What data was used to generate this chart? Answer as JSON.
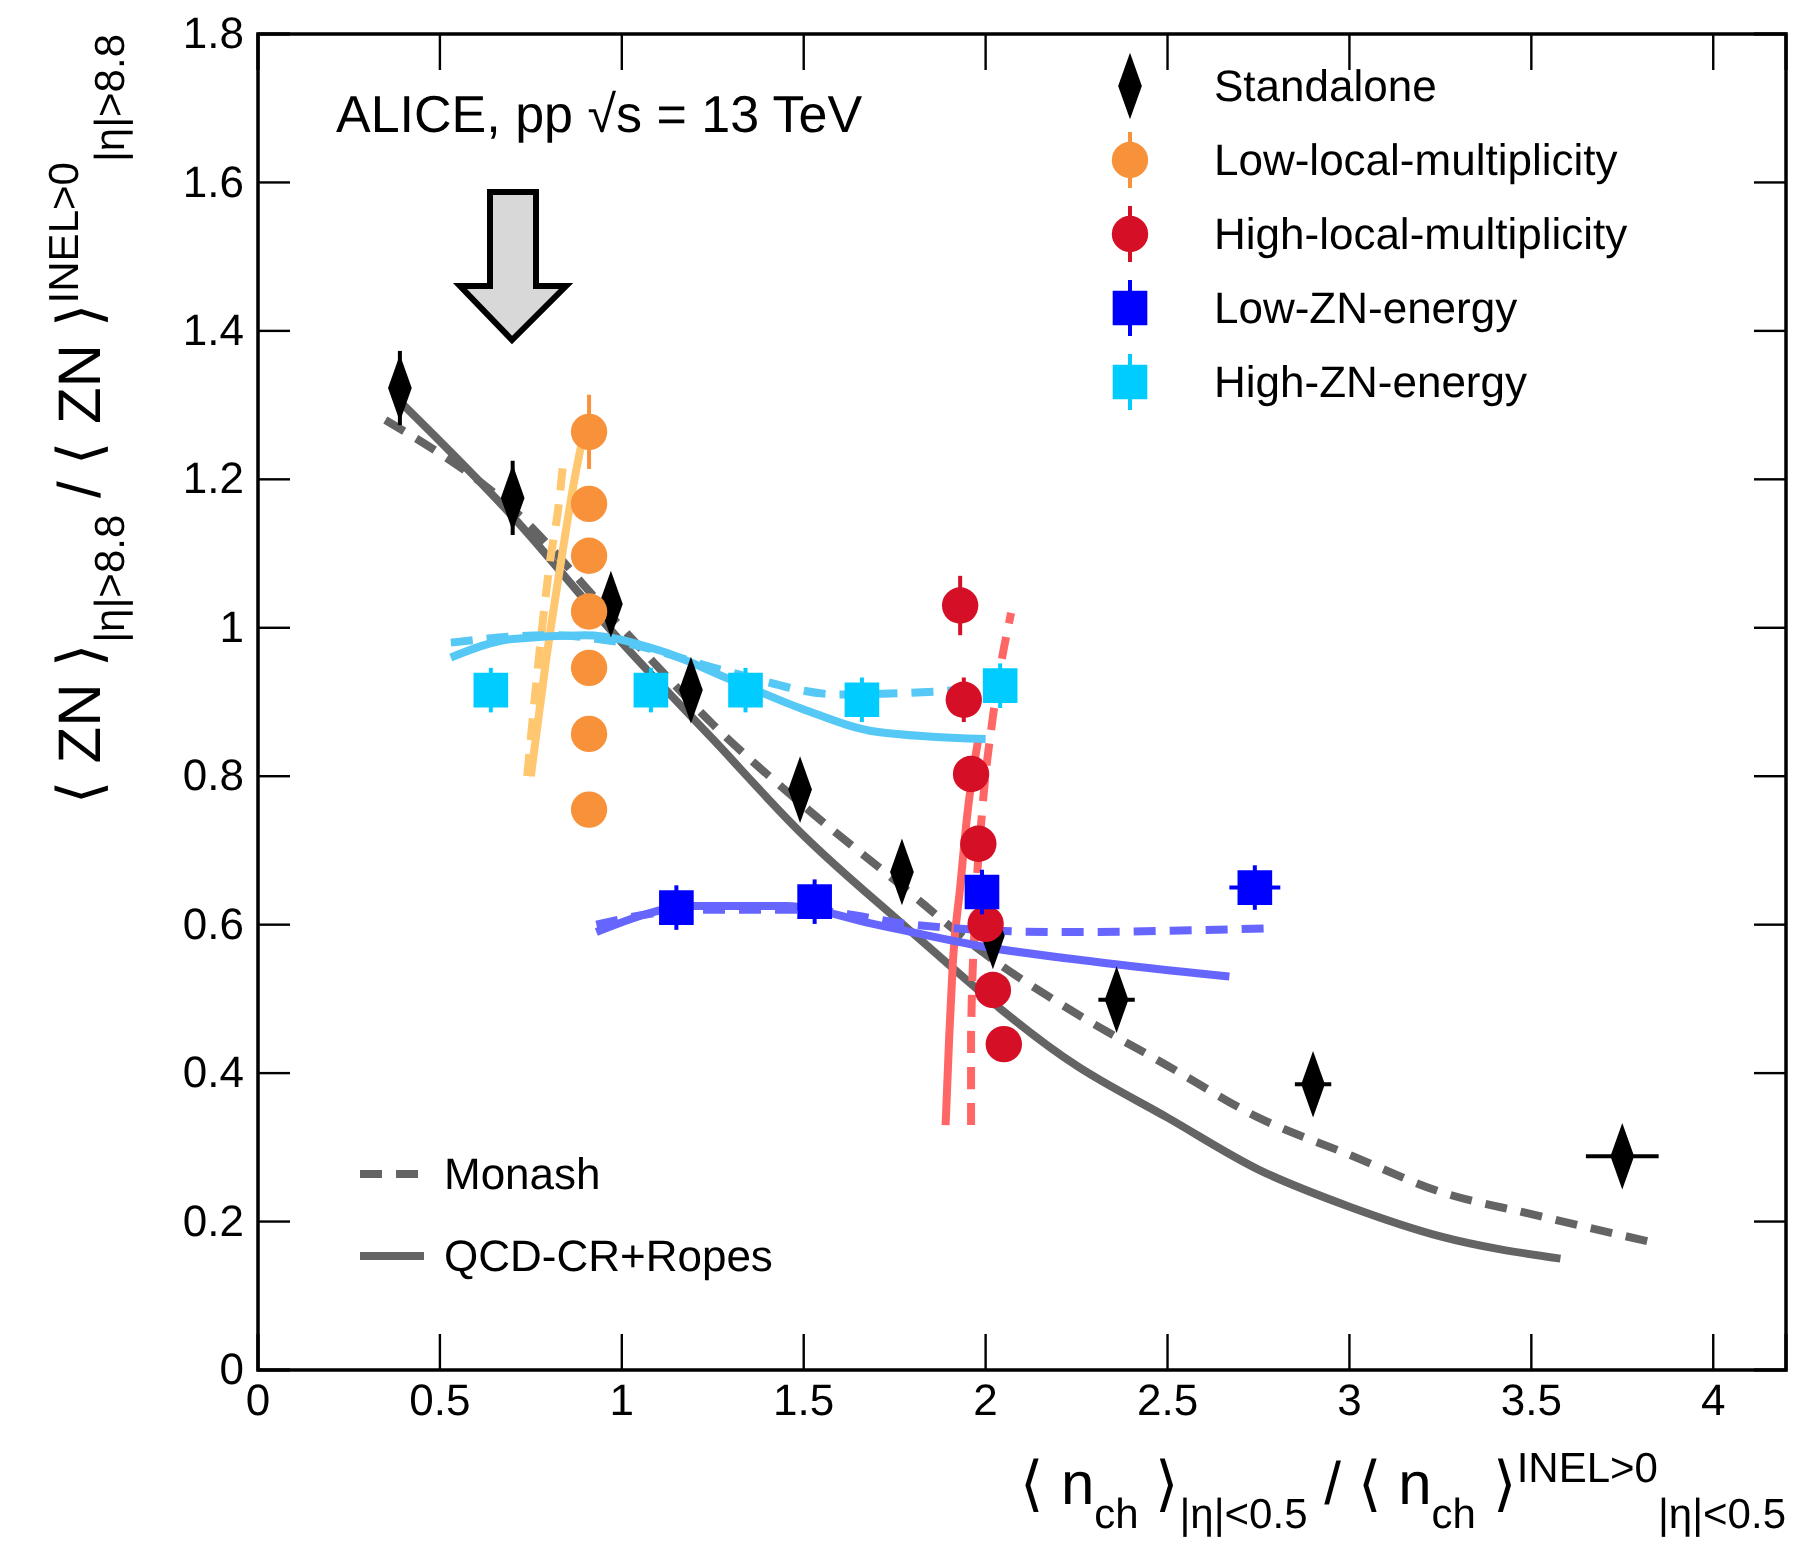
{
  "chart_data": {
    "type": "scatter",
    "xlabel": "⟨ n$_{ch}$ ⟩$_{|η|<0.5}$ / ⟨ n$_{ch}$ ⟩$^{INEL>0}$$_{|η|<0.5}$",
    "ylabel": "⟨ ZN ⟩$_{|η|>8.8}$ / ⟨ ZN ⟩$^{INEL>0}$$_{|η|>8.8}$",
    "annotations": [
      "ALICE, pp √s = 13 TeV"
    ],
    "xlim": [
      0,
      4.2
    ],
    "xticks": [
      0,
      0.5,
      1,
      1.5,
      2,
      2.5,
      3,
      3.5,
      4
    ],
    "ylim": [
      0,
      1.8
    ],
    "yticks": [
      0,
      0.2,
      0.4,
      0.6,
      0.8,
      1,
      1.2,
      1.4,
      1.6,
      1.8
    ],
    "grid": false,
    "legend": "top right",
    "series": [
      {
        "type": "line",
        "name": "Monash",
        "color": "#646464",
        "line_style": "dashed",
        "x": [
          0.35,
          0.7,
          1.0,
          1.25,
          1.5,
          1.75,
          2.0,
          2.25,
          2.5,
          2.75,
          3.0,
          3.25,
          3.5,
          3.85
        ],
        "values": [
          1.28,
          1.16,
          1.0,
          0.87,
          0.76,
          0.66,
          0.56,
          0.48,
          0.41,
          0.34,
          0.29,
          0.24,
          0.21,
          0.17
        ]
      },
      {
        "type": "line",
        "name": "QCD-CR+Ropes",
        "color": "#646464",
        "line_style": "solid",
        "x": [
          0.4,
          0.7,
          1.0,
          1.25,
          1.5,
          1.75,
          2.0,
          2.25,
          2.5,
          2.75,
          3.0,
          3.25,
          3.58
        ],
        "values": [
          1.3,
          1.15,
          0.98,
          0.85,
          0.72,
          0.61,
          null,
          0.41,
          0.34,
          0.27,
          0.22,
          0.18,
          0.15
        ]
      },
      {
        "type": "line",
        "color": "#ffc870",
        "line_style": "dashed",
        "x": [
          0.74,
          0.77,
          0.8,
          0.83,
          0.84
        ],
        "values": [
          0.8,
          0.95,
          1.08,
          1.18,
          1.23
        ]
      },
      {
        "type": "line",
        "color": "#ffc870",
        "line_style": "solid",
        "x": [
          0.75,
          0.79,
          0.83,
          0.87,
          0.89
        ],
        "values": [
          0.8,
          0.95,
          1.08,
          1.2,
          1.25
        ]
      },
      {
        "type": "line",
        "color": "#ff6666",
        "line_style": "dashed",
        "x": [
          1.96,
          1.96,
          1.97,
          1.99,
          2.02,
          2.07
        ],
        "values": [
          0.33,
          0.45,
          0.6,
          0.75,
          0.88,
          1.02
        ]
      },
      {
        "type": "line",
        "color": "#ff6666",
        "line_style": "solid",
        "x": [
          1.89,
          1.9,
          1.91,
          1.93,
          1.95,
          1.98
        ],
        "values": [
          0.33,
          0.45,
          0.55,
          0.65,
          0.75,
          0.85
        ]
      },
      {
        "type": "line",
        "color": "#6666ff",
        "line_style": "dashed",
        "x": [
          0.93,
          1.2,
          1.5,
          1.8,
          2.2,
          2.77
        ],
        "values": [
          0.6,
          0.62,
          0.62,
          0.6,
          0.59,
          0.595
        ]
      },
      {
        "type": "line",
        "color": "#6666ff",
        "line_style": "solid",
        "x": [
          0.93,
          1.2,
          1.45,
          1.7,
          2.0,
          2.3,
          2.67
        ],
        "values": [
          0.59,
          0.625,
          0.625,
          0.6,
          0.57,
          0.55,
          0.53
        ]
      },
      {
        "type": "line",
        "color": "#55c8f5",
        "line_style": "dashed",
        "x": [
          0.53,
          0.8,
          1.0,
          1.3,
          1.6,
          2.0,
          2.05
        ],
        "values": [
          0.98,
          0.99,
          0.98,
          0.94,
          0.91,
          null,
          0.92
        ]
      },
      {
        "type": "line",
        "color": "#55c8f5",
        "line_style": "solid",
        "x": [
          0.53,
          0.7,
          0.9,
          1.1,
          1.3,
          1.5,
          1.7,
          2.0
        ],
        "values": [
          0.96,
          0.985,
          0.99,
          0.97,
          0.93,
          0.89,
          0.86,
          0.85
        ]
      },
      {
        "name": "Standalone",
        "color": "#000000",
        "marker": "diamond",
        "x": [
          0.39,
          0.7,
          0.97,
          1.19,
          1.49,
          1.77,
          2.02,
          2.36,
          2.9,
          3.75
        ],
        "values": [
          1.323,
          1.175,
          1.032,
          0.916,
          0.782,
          0.671,
          0.585,
          0.499,
          0.385,
          0.288
        ],
        "errors": [
          0.05,
          0.05,
          0.03,
          null,
          null,
          null,
          null,
          null,
          null,
          null
        ],
        "xerrors": [
          null,
          null,
          null,
          null,
          null,
          null,
          null,
          0.05,
          0.05,
          0.1
        ]
      },
      {
        "name": "Low-local-multiplicity",
        "color": "#f7923a",
        "marker": "circle",
        "x": [
          0.91,
          0.91,
          0.91,
          0.91,
          0.91,
          0.91,
          0.91
        ],
        "values": [
          1.264,
          1.167,
          1.097,
          1.022,
          0.946,
          0.857,
          0.755
        ],
        "errors": [
          0.05,
          null,
          null,
          null,
          null,
          null,
          null
        ]
      },
      {
        "name": "High-local-multiplicity",
        "color": "#d50f25",
        "marker": "circle",
        "x": [
          1.93,
          1.94,
          1.96,
          1.98,
          2.0,
          2.02,
          2.05
        ],
        "values": [
          1.03,
          0.903,
          0.803,
          0.709,
          0.601,
          0.512,
          0.439
        ],
        "errors": [
          0.04,
          0.03,
          null,
          null,
          null,
          null,
          null
        ]
      },
      {
        "name": "Low-ZN-energy",
        "color": "#0000ff",
        "marker": "square",
        "x": [
          1.15,
          1.53,
          1.99,
          2.74
        ],
        "values": [
          0.623,
          0.631,
          0.644,
          0.65
        ],
        "errors": [
          0.03,
          0.03,
          0.03,
          0.03
        ],
        "xerrors": [
          null,
          null,
          null,
          0.07
        ]
      },
      {
        "name": "High-ZN-energy",
        "color": "#00ccff",
        "marker": "square",
        "x": [
          0.64,
          1.08,
          1.34,
          1.66,
          2.04
        ],
        "values": [
          0.916,
          0.916,
          0.916,
          0.903,
          0.922
        ],
        "errors": [
          0.03,
          0.03,
          0.03,
          0.03,
          0.03
        ]
      }
    ]
  }
}
